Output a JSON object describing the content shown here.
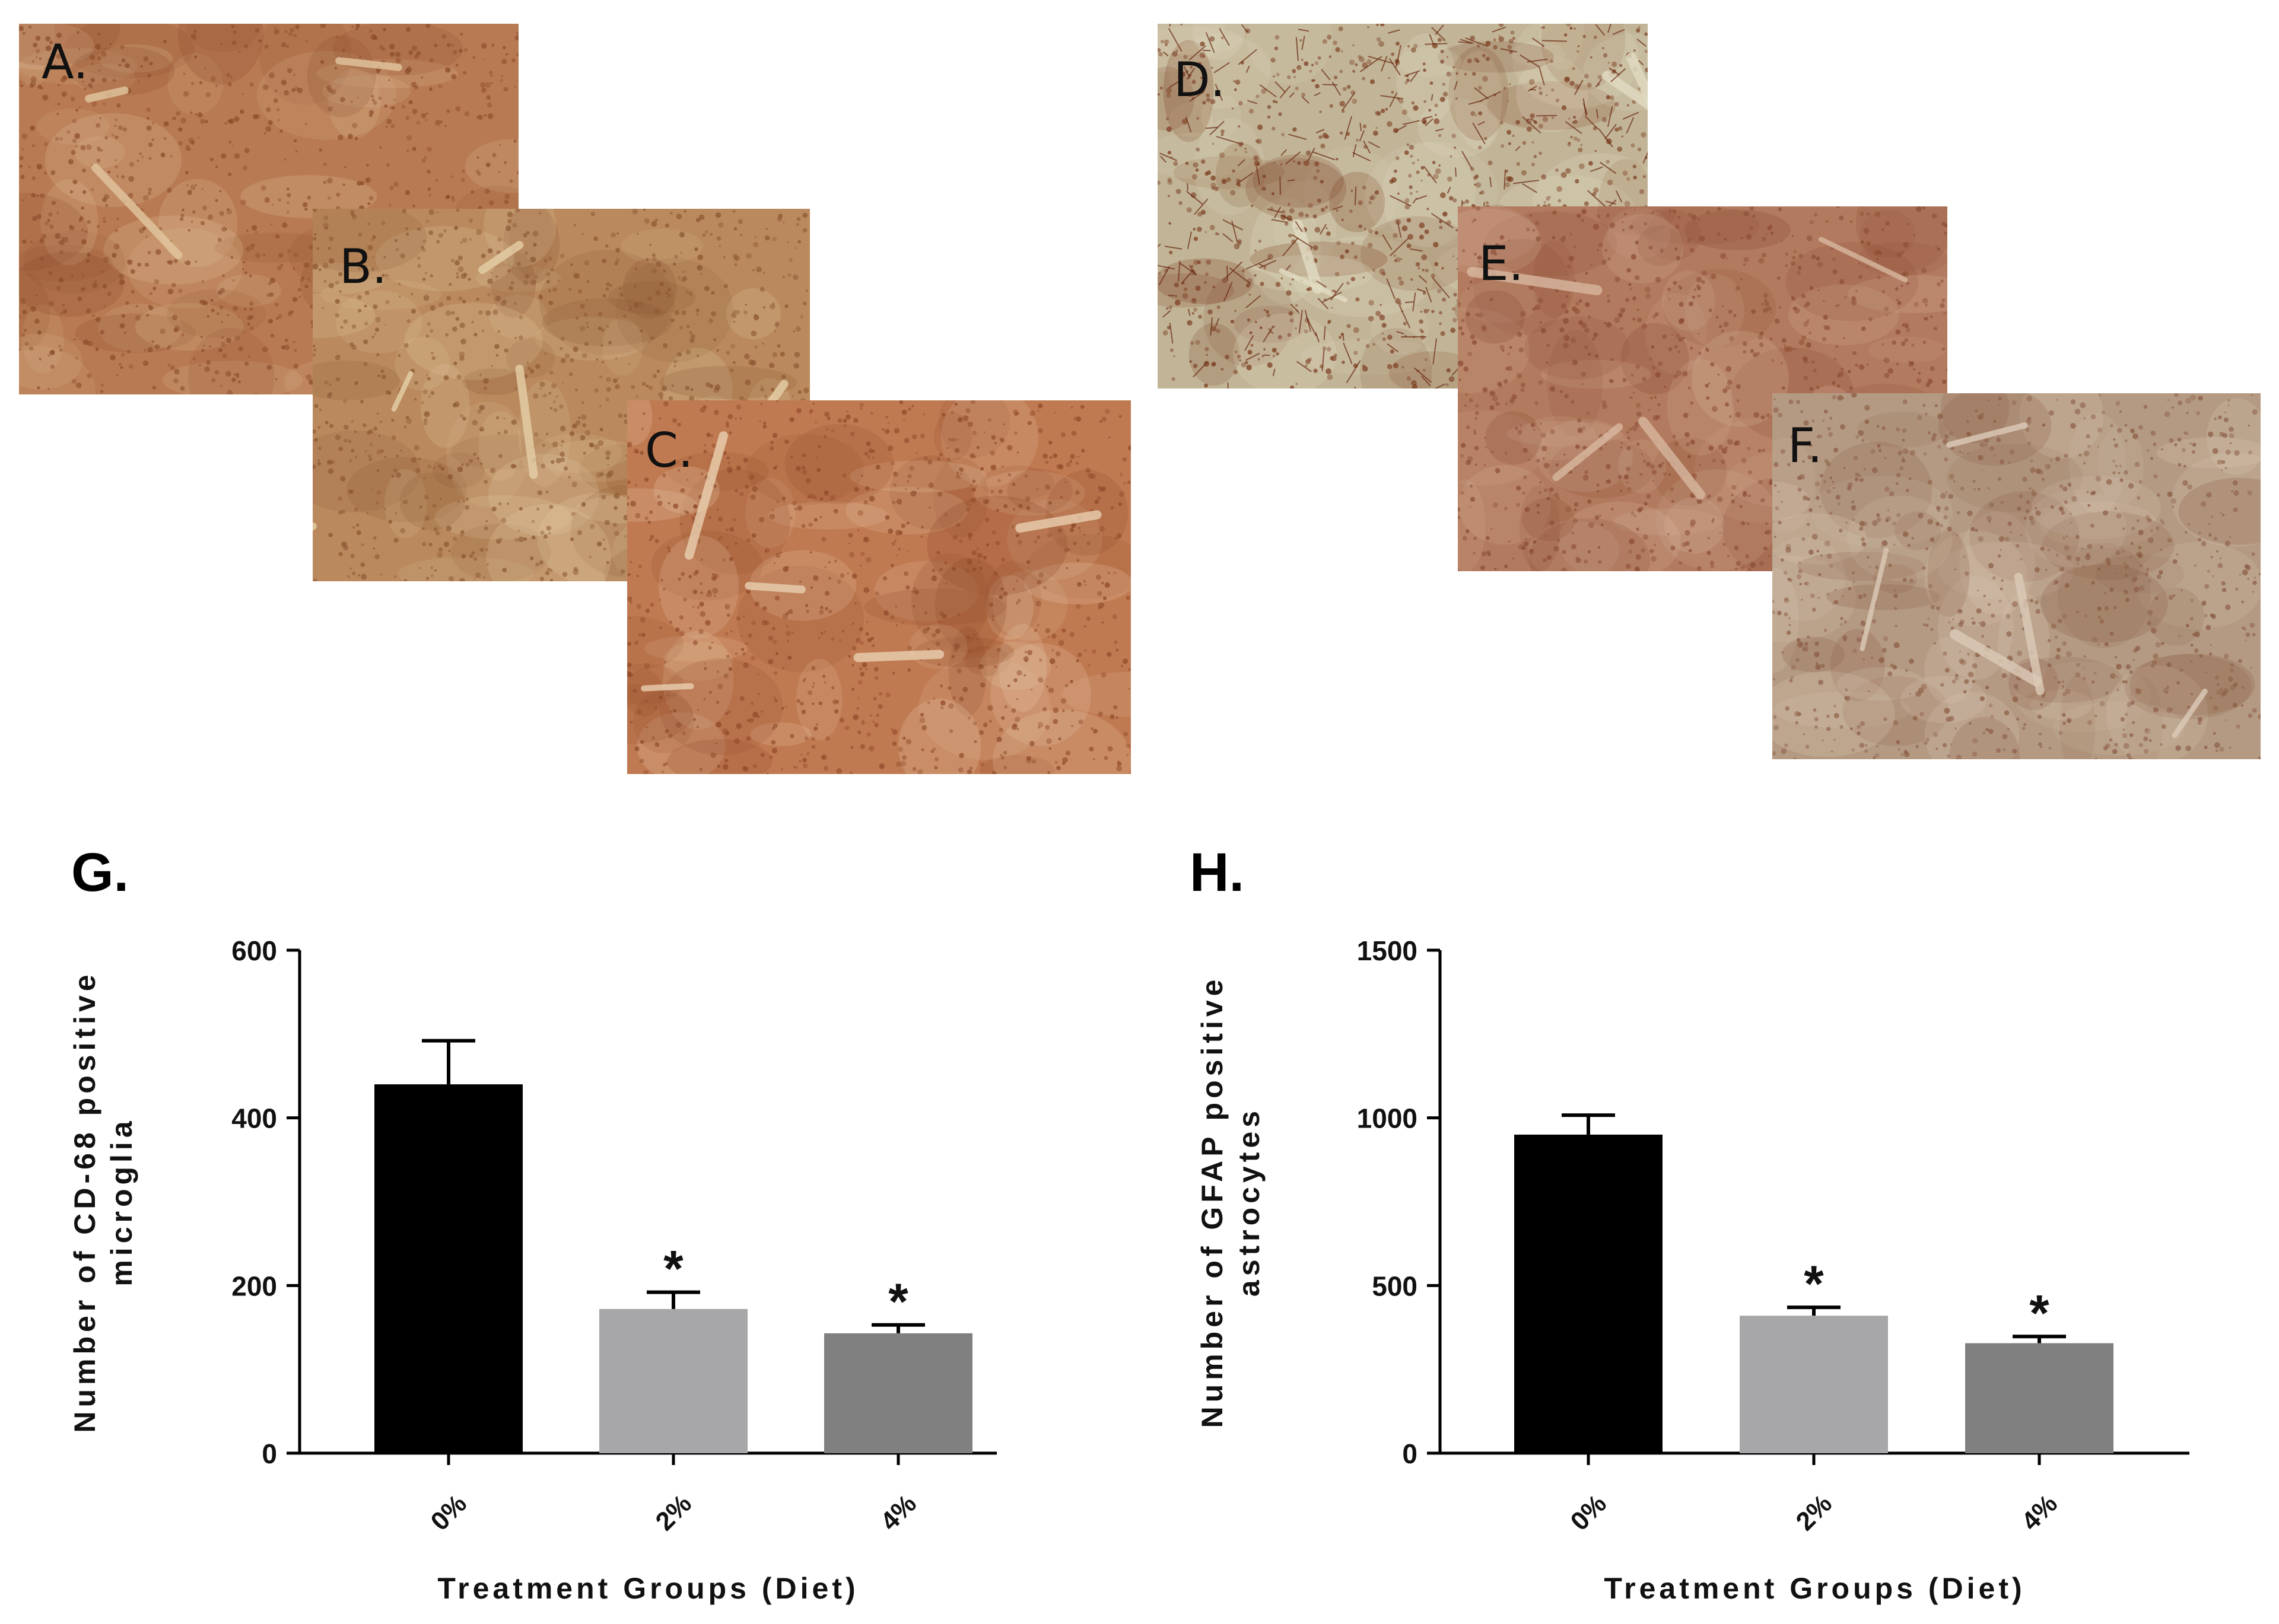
{
  "panels": [
    {
      "label": "A.",
      "tint": "#b87a52",
      "shade": "#8a4a2a",
      "light": "#e2c7a0"
    },
    {
      "label": "B.",
      "tint": "#ba8a5e",
      "shade": "#8a5632",
      "light": "#e6d0a8"
    },
    {
      "label": "C.",
      "tint": "#c07a52",
      "shade": "#8e4828",
      "light": "#ead0b0"
    },
    {
      "label": "D.",
      "tint": "#c2b597",
      "shade": "#7a3a1e",
      "light": "#e2dcc4"
    },
    {
      "label": "E.",
      "tint": "#b27a5e",
      "shade": "#8a4a32",
      "light": "#d8b8a0"
    },
    {
      "label": "F.",
      "tint": "#b49a82",
      "shade": "#8a5a42",
      "light": "#dccbb8"
    }
  ],
  "chart_data": [
    {
      "panel_label": "G.",
      "type": "bar",
      "categories": [
        "0%",
        "2%",
        "4%"
      ],
      "values": [
        440,
        172,
        143
      ],
      "errors": [
        52,
        20,
        10
      ],
      "significance": [
        "",
        "*",
        "*"
      ],
      "colors": [
        "#000000",
        "#a7a7aa",
        "#808080"
      ],
      "xlabel": "Treatment Groups (Diet)",
      "ylabel": [
        "Number of CD-68 positive",
        "microglia"
      ],
      "ylim": [
        0,
        600
      ],
      "yticks": [
        0,
        200,
        400,
        600
      ]
    },
    {
      "panel_label": "H.",
      "type": "bar",
      "categories": [
        "0%",
        "2%",
        "4%"
      ],
      "values": [
        950,
        410,
        328
      ],
      "errors": [
        58,
        25,
        20
      ],
      "significance": [
        "",
        "*",
        "*"
      ],
      "colors": [
        "#000000",
        "#a7a7aa",
        "#808080"
      ],
      "xlabel": "Treatment Groups (Diet)",
      "ylabel": [
        "Number of GFAP positive",
        "astrocytes"
      ],
      "ylim": [
        0,
        1500
      ],
      "yticks": [
        0,
        500,
        1000,
        1500
      ]
    }
  ]
}
